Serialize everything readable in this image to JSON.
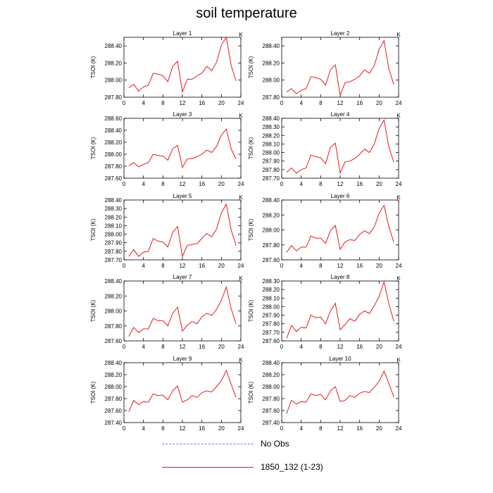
{
  "title": "soil temperature",
  "legend": [
    {
      "label": "No Obs",
      "color": "#7b7bd6",
      "style": "dashed"
    },
    {
      "label": "1850_132 (1-23)",
      "color": "#e41a1c",
      "style": "solid"
    }
  ],
  "chart_data": [
    {
      "type": "line",
      "title": "Layer 1",
      "units": "K",
      "ylabel": "TSOI  (K)",
      "xlim": [
        0,
        24
      ],
      "ylim": [
        287.8,
        288.5
      ],
      "yticks": [
        "287.80",
        "288.00",
        "288.20",
        "288.40"
      ],
      "xticks": [
        0,
        4,
        8,
        12,
        16,
        20,
        24
      ],
      "series": [
        {
          "name": "1850_132 (1-23)",
          "x": [
            1,
            2,
            3,
            4,
            5,
            6,
            7,
            8,
            9,
            10,
            11,
            12,
            13,
            14,
            15,
            16,
            17,
            18,
            19,
            20,
            21,
            22,
            23
          ],
          "values": [
            287.91,
            287.95,
            287.87,
            287.92,
            287.94,
            288.08,
            288.07,
            288.05,
            287.98,
            288.16,
            288.22,
            287.86,
            288.01,
            288.01,
            288.05,
            288.08,
            288.16,
            288.11,
            288.21,
            288.41,
            288.5,
            288.17,
            287.99
          ]
        }
      ]
    },
    {
      "type": "line",
      "title": "Layer 2",
      "units": "K",
      "ylabel": "TSOI  (K)",
      "xlim": [
        0,
        24
      ],
      "ylim": [
        287.8,
        288.5
      ],
      "yticks": [
        "287.80",
        "288.00",
        "288.20",
        "288.40"
      ],
      "xticks": [
        0,
        4,
        8,
        12,
        16,
        20,
        24
      ],
      "series": [
        {
          "name": "1850_132 (1-23)",
          "x": [
            1,
            2,
            3,
            4,
            5,
            6,
            7,
            8,
            9,
            10,
            11,
            12,
            13,
            14,
            15,
            16,
            17,
            18,
            19,
            20,
            21,
            22,
            23
          ],
          "values": [
            287.86,
            287.9,
            287.84,
            287.88,
            287.9,
            288.04,
            288.03,
            288.01,
            287.94,
            288.12,
            288.18,
            287.82,
            287.97,
            287.98,
            288.01,
            288.05,
            288.12,
            288.08,
            288.17,
            288.36,
            288.46,
            288.13,
            287.95
          ]
        }
      ]
    },
    {
      "type": "line",
      "title": "Layer 3",
      "units": "K",
      "ylabel": "TSOI  (K)",
      "xlim": [
        0,
        24
      ],
      "ylim": [
        287.6,
        288.6
      ],
      "yticks": [
        "287.60",
        "287.80",
        "288.00",
        "288.20",
        "288.40",
        "288.60"
      ],
      "xticks": [
        0,
        4,
        8,
        12,
        16,
        20,
        24
      ],
      "series": [
        {
          "name": "1850_132 (1-23)",
          "x": [
            1,
            2,
            3,
            4,
            5,
            6,
            7,
            8,
            9,
            10,
            11,
            12,
            13,
            14,
            15,
            16,
            17,
            18,
            19,
            20,
            21,
            22,
            23
          ],
          "values": [
            287.81,
            287.86,
            287.79,
            287.83,
            287.86,
            288.0,
            287.98,
            287.97,
            287.9,
            288.09,
            288.15,
            287.78,
            287.92,
            287.93,
            287.96,
            288.0,
            288.07,
            288.03,
            288.13,
            288.32,
            288.42,
            288.09,
            287.92
          ]
        }
      ]
    },
    {
      "type": "line",
      "title": "Layer 4",
      "units": "K",
      "ylabel": "TSOI  (K)",
      "xlim": [
        0,
        24
      ],
      "ylim": [
        287.7,
        288.4
      ],
      "yticks": [
        "287.70",
        "287.80",
        "287.90",
        "288.00",
        "288.10",
        "288.20",
        "288.30",
        "288.40"
      ],
      "xticks": [
        0,
        4,
        8,
        12,
        16,
        20,
        24
      ],
      "series": [
        {
          "name": "1850_132 (1-23)",
          "x": [
            1,
            2,
            3,
            4,
            5,
            6,
            7,
            8,
            9,
            10,
            11,
            12,
            13,
            14,
            15,
            16,
            17,
            18,
            19,
            20,
            21,
            22,
            23
          ],
          "values": [
            287.77,
            287.82,
            287.76,
            287.8,
            287.82,
            287.97,
            287.95,
            287.94,
            287.87,
            288.06,
            288.11,
            287.76,
            287.89,
            287.9,
            287.93,
            287.98,
            288.04,
            288.0,
            288.1,
            288.28,
            288.38,
            288.06,
            287.89
          ]
        }
      ]
    },
    {
      "type": "line",
      "title": "Layer 5",
      "units": "K",
      "ylabel": "TSOI  (K)",
      "xlim": [
        0,
        24
      ],
      "ylim": [
        287.7,
        288.4
      ],
      "yticks": [
        "287.70",
        "287.80",
        "287.90",
        "288.00",
        "288.10",
        "288.20",
        "288.30",
        "288.40"
      ],
      "xticks": [
        0,
        4,
        8,
        12,
        16,
        20,
        24
      ],
      "series": [
        {
          "name": "1850_132 (1-23)",
          "x": [
            1,
            2,
            3,
            4,
            5,
            6,
            7,
            8,
            9,
            10,
            11,
            12,
            13,
            14,
            15,
            16,
            17,
            18,
            19,
            20,
            21,
            22,
            23
          ],
          "values": [
            287.74,
            287.82,
            287.74,
            287.79,
            287.8,
            287.95,
            287.92,
            287.91,
            287.85,
            288.02,
            288.09,
            287.74,
            287.87,
            287.88,
            287.89,
            287.95,
            288.01,
            287.97,
            288.06,
            288.25,
            288.35,
            288.05,
            287.87
          ]
        }
      ]
    },
    {
      "type": "line",
      "title": "Layer 6",
      "units": "K",
      "ylabel": "TSOI  (K)",
      "xlim": [
        0,
        24
      ],
      "ylim": [
        287.6,
        288.4
      ],
      "yticks": [
        "287.60",
        "287.80",
        "288.00",
        "288.20",
        "288.40"
      ],
      "xticks": [
        0,
        4,
        8,
        12,
        16,
        20,
        24
      ],
      "series": [
        {
          "name": "1850_132 (1-23)",
          "x": [
            1,
            2,
            3,
            4,
            5,
            6,
            7,
            8,
            9,
            10,
            11,
            12,
            13,
            14,
            15,
            16,
            17,
            18,
            19,
            20,
            21,
            22,
            23
          ],
          "values": [
            287.7,
            287.79,
            287.72,
            287.77,
            287.77,
            287.92,
            287.89,
            287.89,
            287.82,
            287.99,
            288.06,
            287.74,
            287.84,
            287.87,
            287.86,
            287.94,
            287.99,
            287.95,
            288.04,
            288.22,
            288.33,
            288.04,
            287.84
          ]
        }
      ]
    },
    {
      "type": "line",
      "title": "Layer 7",
      "units": "K",
      "ylabel": "TSOI  (K)",
      "xlim": [
        0,
        24
      ],
      "ylim": [
        287.6,
        288.4
      ],
      "yticks": [
        "287.60",
        "287.80",
        "288.00",
        "288.20",
        "288.40"
      ],
      "xticks": [
        0,
        4,
        8,
        12,
        16,
        20,
        24
      ],
      "series": [
        {
          "name": "1850_132 (1-23)",
          "x": [
            1,
            2,
            3,
            4,
            5,
            6,
            7,
            8,
            9,
            10,
            11,
            12,
            13,
            14,
            15,
            16,
            17,
            18,
            19,
            20,
            21,
            22,
            23
          ],
          "values": [
            287.66,
            287.78,
            287.71,
            287.76,
            287.76,
            287.9,
            287.87,
            287.87,
            287.8,
            287.97,
            288.05,
            287.73,
            287.81,
            287.86,
            287.83,
            287.92,
            287.97,
            287.94,
            288.02,
            288.14,
            288.32,
            288.03,
            287.83
          ]
        }
      ]
    },
    {
      "type": "line",
      "title": "Layer 8",
      "units": "K",
      "ylabel": "TSOI  (K)",
      "xlim": [
        0,
        24
      ],
      "ylim": [
        287.6,
        288.3
      ],
      "yticks": [
        "287.60",
        "287.70",
        "287.80",
        "287.90",
        "288.00",
        "288.10",
        "288.20",
        "288.30"
      ],
      "xticks": [
        0,
        4,
        8,
        12,
        16,
        20,
        24
      ],
      "series": [
        {
          "name": "1850_132 (1-23)",
          "x": [
            1,
            2,
            3,
            4,
            5,
            6,
            7,
            8,
            9,
            10,
            11,
            12,
            13,
            14,
            15,
            16,
            17,
            18,
            19,
            20,
            21,
            22,
            23
          ],
          "values": [
            287.63,
            287.78,
            287.71,
            287.76,
            287.75,
            287.9,
            287.87,
            287.88,
            287.8,
            287.95,
            288.04,
            287.73,
            287.79,
            287.86,
            287.83,
            287.91,
            287.95,
            287.92,
            288.01,
            288.12,
            288.29,
            288.03,
            287.83
          ]
        }
      ]
    },
    {
      "type": "line",
      "title": "Layer 9",
      "units": "K",
      "ylabel": "TSOI  (K)",
      "xlim": [
        0,
        24
      ],
      "ylim": [
        287.4,
        288.4
      ],
      "yticks": [
        "287.40",
        "287.60",
        "287.80",
        "288.00",
        "288.20",
        "288.40"
      ],
      "xticks": [
        0,
        4,
        8,
        12,
        16,
        20,
        24
      ],
      "series": [
        {
          "name": "1850_132 (1-23)",
          "x": [
            1,
            2,
            3,
            4,
            5,
            6,
            7,
            8,
            9,
            10,
            11,
            12,
            13,
            14,
            15,
            16,
            17,
            18,
            19,
            20,
            21,
            22,
            23
          ],
          "values": [
            287.58,
            287.77,
            287.7,
            287.75,
            287.74,
            287.88,
            287.85,
            287.86,
            287.78,
            287.93,
            288.01,
            287.74,
            287.78,
            287.85,
            287.82,
            287.9,
            287.93,
            287.91,
            288.0,
            288.1,
            288.27,
            288.04,
            287.82
          ]
        }
      ]
    },
    {
      "type": "line",
      "title": "Layer 10",
      "units": "K",
      "ylabel": "TSOI  (K)",
      "xlim": [
        0,
        24
      ],
      "ylim": [
        287.4,
        288.4
      ],
      "yticks": [
        "287.40",
        "287.60",
        "287.80",
        "288.00",
        "288.20",
        "288.40"
      ],
      "xticks": [
        0,
        4,
        8,
        12,
        16,
        20,
        24
      ],
      "series": [
        {
          "name": "1850_132 (1-23)",
          "x": [
            1,
            2,
            3,
            4,
            5,
            6,
            7,
            8,
            9,
            10,
            11,
            12,
            13,
            14,
            15,
            16,
            17,
            18,
            19,
            20,
            21,
            22,
            23
          ],
          "values": [
            287.55,
            287.77,
            287.71,
            287.75,
            287.74,
            287.88,
            287.85,
            287.87,
            287.78,
            287.93,
            288.0,
            287.75,
            287.77,
            287.85,
            287.82,
            287.89,
            287.92,
            287.9,
            287.99,
            288.09,
            288.26,
            288.05,
            287.83
          ]
        }
      ]
    }
  ]
}
